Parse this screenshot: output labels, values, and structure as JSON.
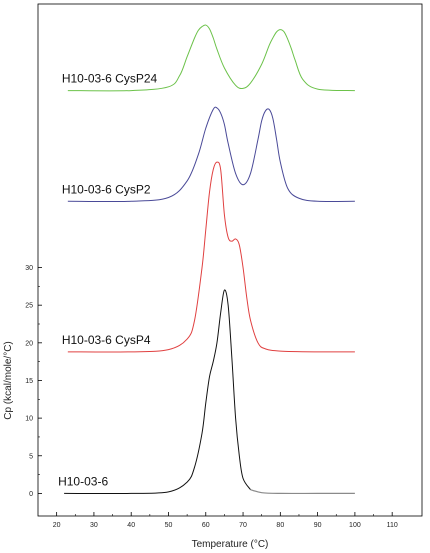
{
  "chart_data": {
    "type": "line",
    "title": "",
    "xlabel": "Temperature (°C)",
    "ylabel": "Cp (kcal/mole/°C)",
    "xlim": [
      15,
      118
    ],
    "ylim": [
      -3,
      65
    ],
    "x_ticks": [
      20,
      30,
      40,
      50,
      60,
      70,
      80,
      90,
      100,
      110
    ],
    "y_ticks": [
      0,
      5,
      10,
      15,
      20,
      25,
      30
    ],
    "grid": false,
    "legend": "none",
    "series": [
      {
        "name": "H10-03-6",
        "color": "#111111",
        "tail_color": "#8a8a8a",
        "x": [
          22,
          40,
          50,
          55,
          57,
          59,
          60,
          61,
          62,
          63,
          64,
          65,
          66,
          67,
          68,
          69,
          70,
          72,
          75,
          80,
          90,
          100
        ],
        "y": [
          0,
          0,
          0.2,
          1.5,
          3.5,
          8,
          12,
          15.5,
          17.5,
          20,
          24,
          27,
          25,
          18,
          10,
          5,
          2,
          0.5,
          0.1,
          0,
          0,
          0
        ]
      },
      {
        "name": "H10-03-6 CysP4",
        "color": "#e04040",
        "x": [
          23,
          40,
          50,
          55,
          57,
          59,
          60,
          61,
          62,
          63,
          64,
          65,
          66,
          67,
          68,
          69,
          70,
          71,
          72,
          74,
          76,
          80,
          90,
          100
        ],
        "y": [
          18.8,
          18.8,
          19.1,
          20.5,
          23,
          30,
          35,
          40,
          43,
          44,
          43,
          37,
          34,
          33.5,
          33.8,
          33,
          30,
          26,
          23,
          20,
          19.2,
          18.9,
          18.8,
          18.8
        ]
      },
      {
        "name": "H10-03-6 CysP2",
        "color": "#4a4a98",
        "x": [
          23,
          40,
          50,
          55,
          58,
          60,
          62,
          63,
          64,
          65,
          66,
          68,
          70,
          72,
          74,
          75,
          76,
          77,
          78,
          79,
          80,
          82,
          85,
          90,
          100
        ],
        "y": [
          38.8,
          38.8,
          39.3,
          41.5,
          45,
          48.5,
          51,
          51.2,
          50.5,
          49,
          46.5,
          42.5,
          41,
          42.5,
          47,
          49.5,
          50.8,
          51,
          49.8,
          47,
          44,
          40.5,
          39.2,
          38.8,
          38.8
        ]
      },
      {
        "name": "H10-03-6 CysP24",
        "color": "#6cc24a",
        "x": [
          23,
          40,
          50,
          53,
          55,
          57,
          58,
          59,
          60,
          61,
          62,
          63,
          65,
          68,
          70,
          72,
          75,
          77,
          78,
          79,
          80,
          81,
          82,
          83,
          84,
          86,
          90,
          100
        ],
        "y": [
          53.5,
          53.5,
          54,
          55.5,
          58,
          60.5,
          61.5,
          62,
          62.2,
          61.7,
          60.5,
          59,
          56.5,
          54.2,
          53.8,
          54.5,
          57,
          59.5,
          60.5,
          61.3,
          61.6,
          61.3,
          60.3,
          59,
          57.5,
          55,
          53.7,
          53.5
        ]
      }
    ]
  }
}
